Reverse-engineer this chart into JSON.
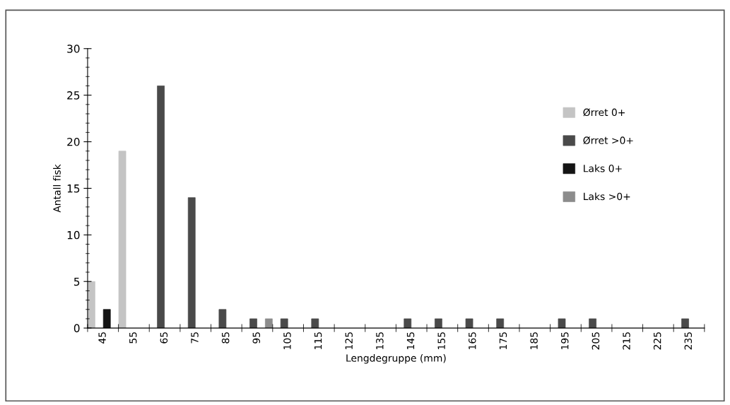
{
  "chart_data": {
    "type": "bar",
    "xlabel": "Lengdegruppe (mm)",
    "ylabel": "Antall fisk",
    "categories": [
      "45",
      "55",
      "65",
      "75",
      "85",
      "95",
      "105",
      "115",
      "125",
      "135",
      "145",
      "155",
      "165",
      "175",
      "185",
      "195",
      "205",
      "215",
      "225",
      "235"
    ],
    "series": [
      {
        "name": "Ørret 0+",
        "color": "#c4c4c4",
        "values": [
          5,
          19,
          null,
          null,
          null,
          null,
          null,
          null,
          null,
          null,
          null,
          null,
          null,
          null,
          null,
          null,
          null,
          null,
          null,
          null
        ]
      },
      {
        "name": "Ørret >0+",
        "color": "#4a4a4a",
        "values": [
          null,
          null,
          26,
          14,
          2,
          1,
          1,
          1,
          null,
          null,
          1,
          1,
          1,
          1,
          null,
          1,
          1,
          null,
          null,
          1
        ]
      },
      {
        "name": "Laks 0+",
        "color": "#141414",
        "values": [
          2,
          null,
          null,
          null,
          null,
          null,
          null,
          null,
          null,
          null,
          null,
          null,
          null,
          null,
          null,
          null,
          null,
          null,
          null,
          null
        ]
      },
      {
        "name": "Laks >0+",
        "color": "#8c8c8c",
        "values": [
          null,
          null,
          null,
          null,
          null,
          1,
          null,
          null,
          null,
          null,
          null,
          null,
          null,
          null,
          null,
          null,
          null,
          null,
          null,
          null
        ]
      }
    ],
    "ylim": [
      0,
      30
    ],
    "yticks": [
      0,
      5,
      10,
      15,
      20,
      25,
      30
    ],
    "grid": false,
    "legend": "right"
  }
}
